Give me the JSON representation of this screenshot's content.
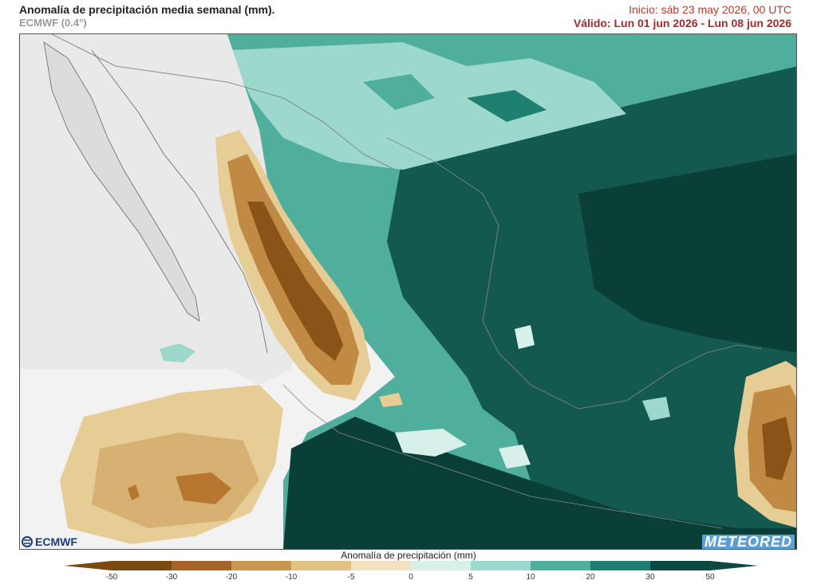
{
  "header": {
    "title": "Anomalía de precipitación media semanal (mm).",
    "model": "ECMWF (0.4°)",
    "init": "Inicio:  sáb 23 may 2026, 00 UTC",
    "valid": "Válido: Lun 01 jun 2026 - Lun 08 jun 2026"
  },
  "logos": {
    "ecmwf": "ECMWF",
    "meteored": "METEORED"
  },
  "legend": {
    "label": "Anomalía de precipitación (mm)",
    "ticks": [
      "-50",
      "-30",
      "-20",
      "-10",
      "-5",
      "0",
      "5",
      "10",
      "20",
      "30",
      "50"
    ],
    "colors": [
      "#7a4a12",
      "#a5652a",
      "#c9964f",
      "#e0c286",
      "#f2e2bf",
      "#ffffff",
      "#d7f0ea",
      "#9dd8cc",
      "#4fae9c",
      "#1f7f71",
      "#0b4a40"
    ]
  },
  "map": {
    "region": "Mexico and surroundings",
    "colors": {
      "land_neutral": "#e8e8e8",
      "ocean_neutral": "#f4f4f4",
      "dry_strong": "#8a5418",
      "dry_medium": "#c08a45",
      "dry_light": "#e6cc95",
      "wet_light": "#a9dfd3",
      "wet_medium": "#3f9d8b",
      "wet_strong": "#14594f",
      "wet_extreme": "#0a3f37"
    }
  }
}
